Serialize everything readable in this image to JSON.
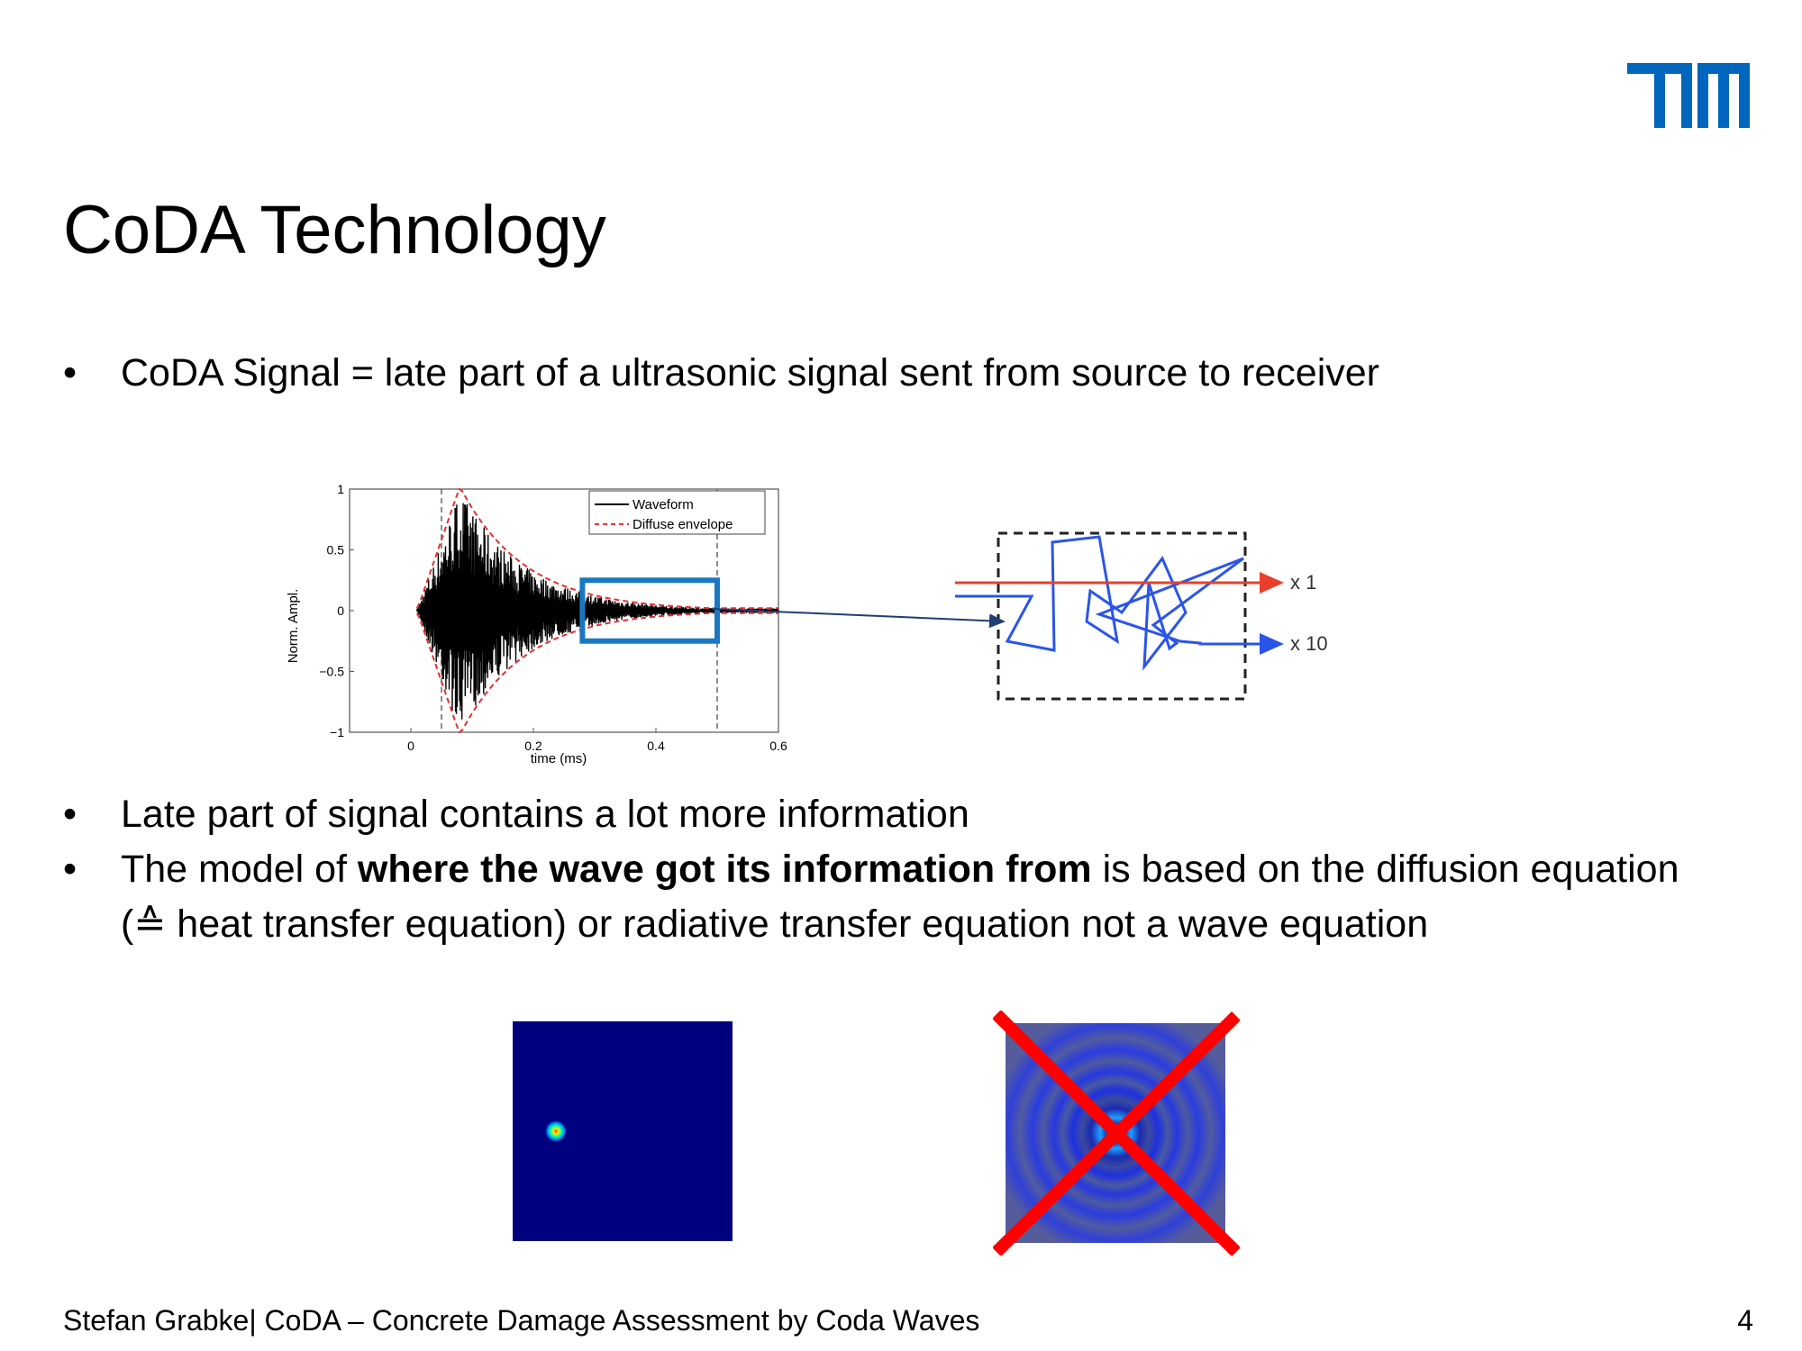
{
  "slide": {
    "title": "CoDA Technology",
    "bullet_char": "•",
    "bullets": [
      {
        "text": "CoDA Signal = late part of a ultrasonic signal sent from source to receiver"
      },
      {
        "text": "Late part of signal contains a lot more information"
      },
      {
        "prefix": "The model of ",
        "bold": "where the wave got its information from",
        "suffix": " is based on the diffusion equation",
        "continuation": "(≙ heat transfer equation) or radiative transfer equation not a wave equation"
      }
    ]
  },
  "logo": {
    "text": "TUM",
    "color": "#0065BD"
  },
  "chart_data": {
    "type": "line",
    "xlabel": "time (ms)",
    "ylabel": "Norm. Ampl.",
    "x_ticks": [
      "0",
      "0.2",
      "0.4",
      "0.6"
    ],
    "y_ticks": [
      "1",
      "0.5",
      "0",
      "−0.5",
      "−1"
    ],
    "xlim": [
      -0.1,
      0.6
    ],
    "ylim": [
      -1,
      1
    ],
    "series": [
      {
        "name": "Waveform",
        "color": "#000000",
        "style": "solid"
      },
      {
        "name": "Diffuse envelope",
        "color": "#e53030",
        "style": "dashed"
      }
    ],
    "vlines": [
      0.05,
      0.5
    ],
    "highlight_range": [
      0.28,
      0.5
    ],
    "highlight_color": "#1a78c2"
  },
  "scattering_diagram": {
    "direct_label": "x 1",
    "scattered_label": "x 10",
    "direct_color": "#e8402a",
    "scattered_color": "#2a55e8"
  },
  "footer": {
    "text": "Stefan Grabke| CoDA – Concrete Damage Assessment by Coda Waves",
    "page_number": "4"
  }
}
